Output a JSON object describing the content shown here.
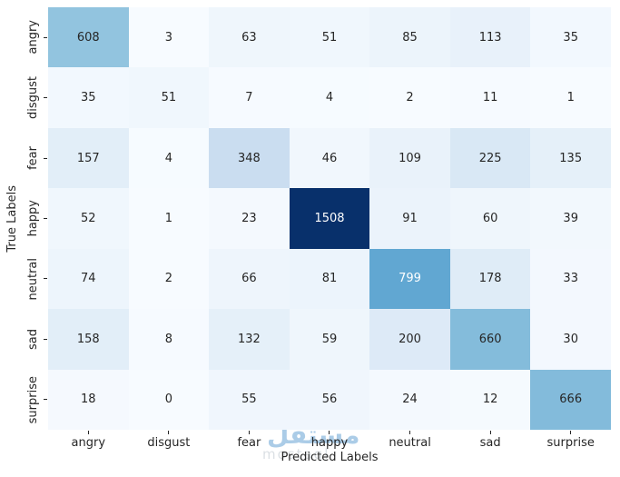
{
  "chart_data": {
    "type": "heatmap",
    "title": "",
    "xlabel": "Predicted Labels",
    "ylabel": "True Labels",
    "x_categories": [
      "angry",
      "disgust",
      "fear",
      "happy",
      "neutral",
      "sad",
      "surprise"
    ],
    "y_categories": [
      "angry",
      "disgust",
      "fear",
      "happy",
      "neutral",
      "sad",
      "surprise"
    ],
    "values": [
      [
        608,
        3,
        63,
        51,
        85,
        113,
        35
      ],
      [
        35,
        51,
        7,
        4,
        2,
        11,
        1
      ],
      [
        157,
        4,
        348,
        46,
        109,
        225,
        135
      ],
      [
        52,
        1,
        23,
        1508,
        91,
        60,
        39
      ],
      [
        74,
        2,
        66,
        81,
        799,
        178,
        33
      ],
      [
        158,
        8,
        132,
        59,
        200,
        660,
        30
      ],
      [
        18,
        0,
        55,
        56,
        24,
        12,
        666
      ]
    ],
    "vmin": 0,
    "vmax": 1508,
    "colormap": "Blues",
    "legend_position": "none",
    "grid": false,
    "annotation_dark_color": "#262626",
    "annotation_light_color": "#ffffff",
    "tick_color": "#262626",
    "background_color": "#ffffff"
  },
  "watermark": {
    "arabic": "مستقل",
    "latin": "mostaql"
  }
}
